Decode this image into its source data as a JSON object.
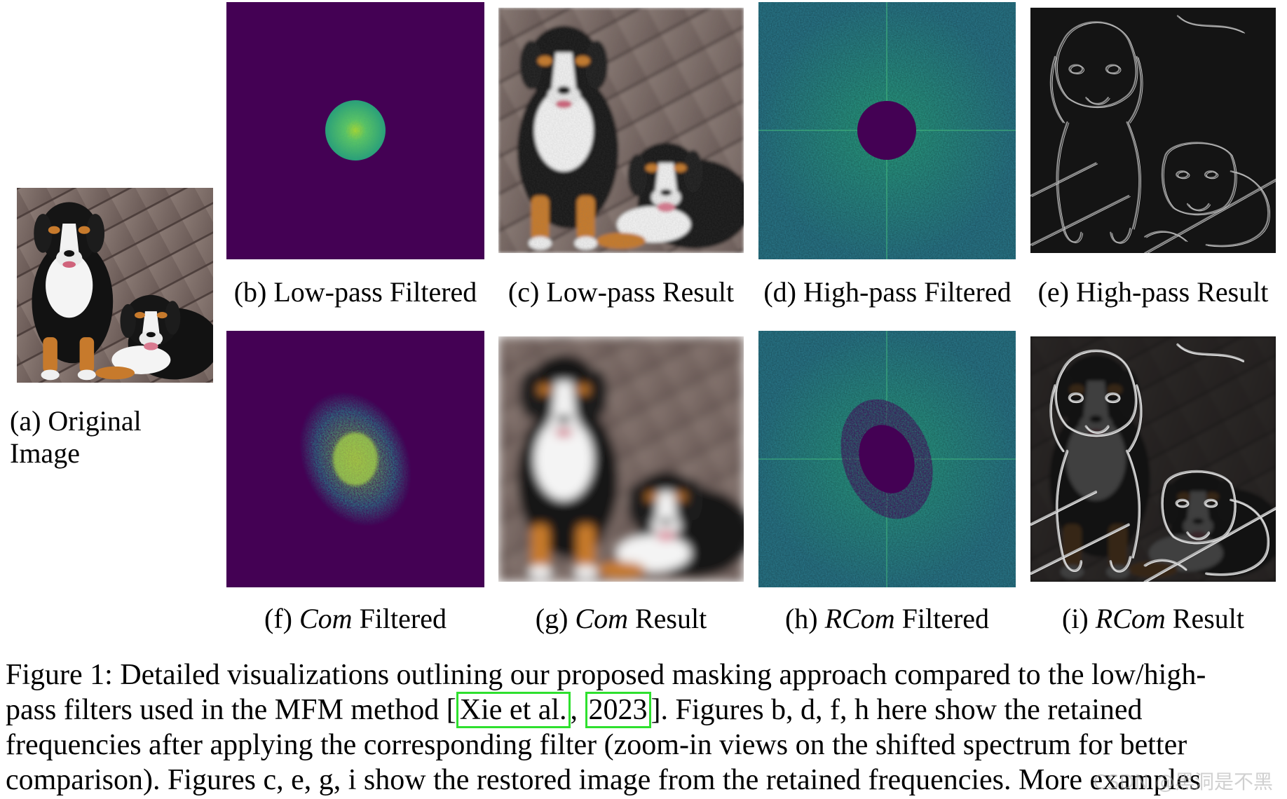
{
  "figure": {
    "panels": [
      {
        "id": "a",
        "label_prefix": "(a) ",
        "label_rest": "Original",
        "label_line2": "Image",
        "kind": "photo"
      },
      {
        "id": "b",
        "label_prefix": "(b) ",
        "label_rest": "Low-pass Filtered",
        "kind": "spectrum-lowpass"
      },
      {
        "id": "c",
        "label_prefix": "(c) ",
        "label_rest": "Low-pass Result",
        "kind": "photo-lowpass"
      },
      {
        "id": "d",
        "label_prefix": "(d) ",
        "label_rest": "High-pass Filtered",
        "kind": "spectrum-highpass"
      },
      {
        "id": "e",
        "label_prefix": "(e) ",
        "label_rest": "High-pass Result",
        "kind": "edges"
      },
      {
        "id": "f",
        "label_prefix": "(f) ",
        "label_italic": "Com",
        "label_rest": " Filtered",
        "kind": "spectrum-com"
      },
      {
        "id": "g",
        "label_prefix": "(g) ",
        "label_italic": "Com",
        "label_rest": " Result",
        "kind": "photo-blur"
      },
      {
        "id": "h",
        "label_prefix": "(h) ",
        "label_italic": "RCom",
        "label_rest": " Filtered",
        "kind": "spectrum-rcom"
      },
      {
        "id": "i",
        "label_prefix": "(i) ",
        "label_italic": "RCom",
        "label_rest": " Result",
        "kind": "edges-strong"
      }
    ],
    "colors": {
      "spectrum_bg": "#440154",
      "spectrum_teal": "#2a8a8c",
      "spectrum_center": "#b5de2b",
      "edges_bg": "#141414",
      "cite_border": "#2ee02e"
    }
  },
  "caption": {
    "line1": "Figure 1: Detailed visualizations outlining our proposed masking approach compared to the low/high-",
    "line2_before": "pass filters used in the MFM method [",
    "cite_author": "Xie et al.",
    "line2_mid": ", ",
    "cite_year": "2023",
    "line2_after": "]. Figures b, d, f, h here show the retained",
    "line3": "frequencies after applying the corresponding filter (zoom-in views on the shifted spectrum for better",
    "line4": "comparison). Figures c, e, g, i show the restored image from the retained frequencies. More examples"
  },
  "watermark": "CSDN @黑洞是不黑"
}
